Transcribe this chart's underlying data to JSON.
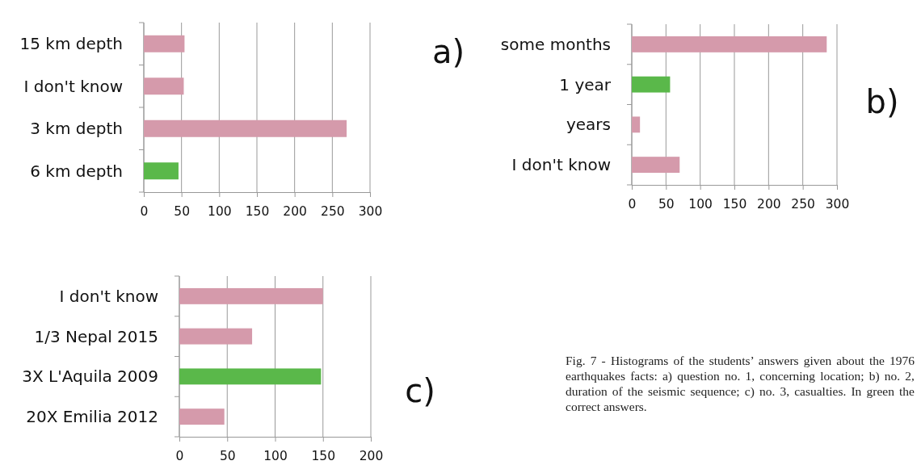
{
  "chart_data": [
    {
      "type": "bar",
      "orientation": "horizontal",
      "annotations": [
        "a)"
      ],
      "categories": [
        "15 km depth",
        "I don't know",
        "3 km depth",
        "6 km depth"
      ],
      "values": [
        54,
        53,
        269,
        46
      ],
      "colors": [
        "#d59aab",
        "#d59aab",
        "#d59aab",
        "#5ab84a"
      ],
      "xlim": [
        0,
        300
      ],
      "xticks": [
        0,
        50,
        100,
        150,
        200,
        250,
        300
      ],
      "grid": "x"
    },
    {
      "type": "bar",
      "orientation": "horizontal",
      "annotations": [
        "b)"
      ],
      "categories": [
        "some months",
        "1 year",
        "years",
        "I don't know"
      ],
      "values": [
        285,
        56,
        12,
        70
      ],
      "colors": [
        "#d59aab",
        "#5ab84a",
        "#d59aab",
        "#d59aab"
      ],
      "xlim": [
        0,
        300
      ],
      "xticks": [
        0,
        50,
        100,
        150,
        200,
        250,
        300
      ],
      "grid": "x"
    },
    {
      "type": "bar",
      "orientation": "horizontal",
      "annotations": [
        "c)",
        "Fig. 7 - Histograms of the students’ answers given about the 1976 earthquakes facts: a) question no. 1, concerning location; b) no. 2, duration of the seismic sequence; c) no. 3, casualties. In green the correct answers."
      ],
      "categories": [
        "I don't know",
        "1/3 Nepal 2015",
        "3X L'Aquila 2009",
        "20X Emilia 2012"
      ],
      "values": [
        150,
        76,
        148,
        47
      ],
      "colors": [
        "#d59aab",
        "#d59aab",
        "#5ab84a",
        "#d59aab"
      ],
      "xlim": [
        0,
        200
      ],
      "xticks": [
        0,
        50,
        100,
        150,
        200
      ],
      "grid": "x"
    }
  ]
}
